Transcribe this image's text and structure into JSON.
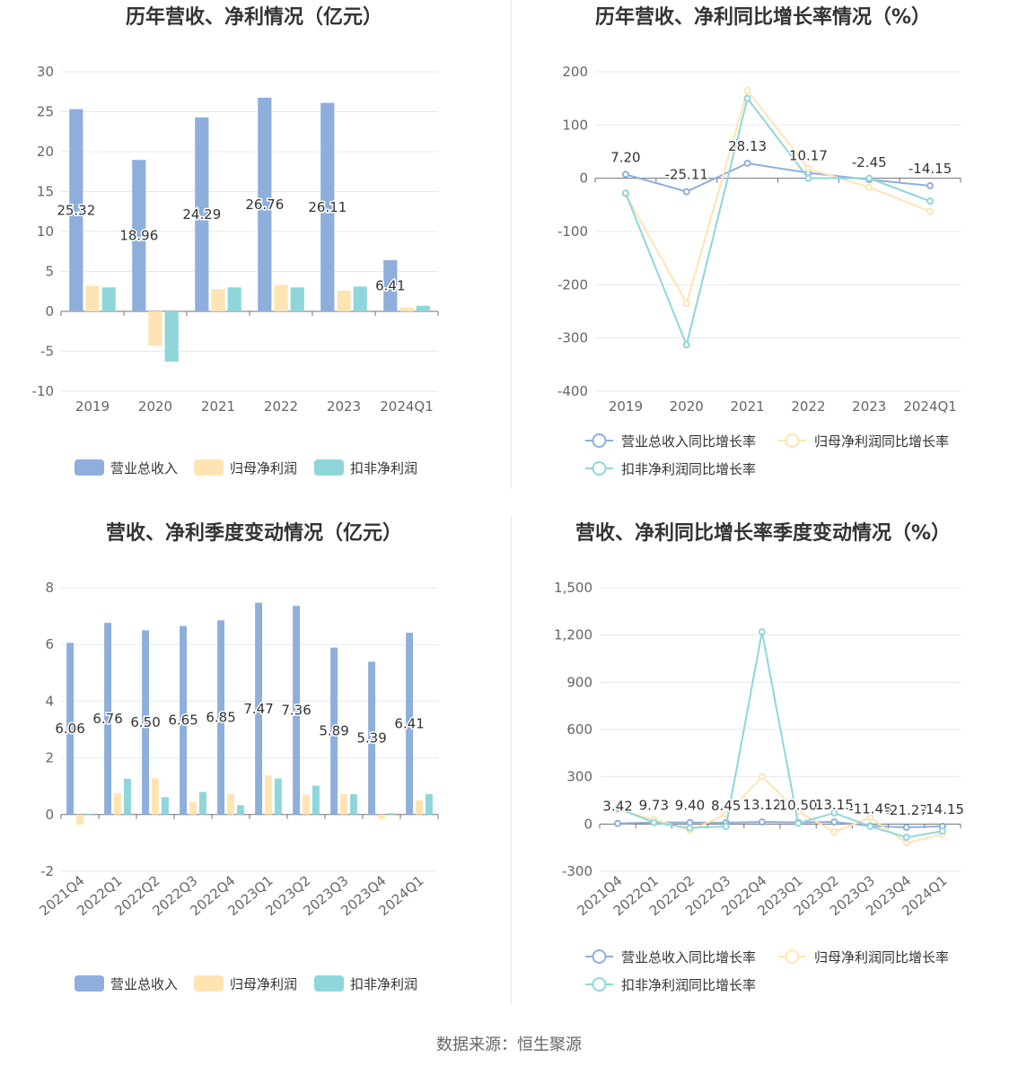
{
  "colors": {
    "revenue": "#8eaedc",
    "parent_profit": "#ffe4b3",
    "deducted_profit": "#8fd6da",
    "grid": "#e6e8ef",
    "axis": "#6e7079"
  },
  "source_text": "数据来源：恒生聚源",
  "chart_data": [
    {
      "type": "bar",
      "title": "历年营收、净利情况（亿元）",
      "categories": [
        "2019",
        "2020",
        "2021",
        "2022",
        "2023",
        "2024Q1"
      ],
      "ylim": [
        -10,
        30
      ],
      "yticks": [
        -10,
        -5,
        0,
        5,
        10,
        15,
        20,
        25,
        30
      ],
      "label_series": 0,
      "series": [
        {
          "name": "营业总收入",
          "color": "#8eaedc",
          "values": [
            25.32,
            18.96,
            24.29,
            26.76,
            26.11,
            6.41
          ],
          "labels": [
            "25.32",
            "18.96",
            "24.29",
            "26.76",
            "26.11",
            "6.41"
          ]
        },
        {
          "name": "归母净利润",
          "color": "#ffe4b3",
          "values": [
            3.2,
            -4.3,
            2.8,
            3.3,
            2.6,
            0.5
          ]
        },
        {
          "name": "扣非净利润",
          "color": "#8fd6da",
          "values": [
            3.0,
            -6.3,
            3.0,
            3.0,
            3.1,
            0.7
          ]
        }
      ],
      "legend": "bottom"
    },
    {
      "type": "line",
      "title": "历年营收、净利同比增长率情况（%）",
      "categories": [
        "2019",
        "2020",
        "2021",
        "2022",
        "2023",
        "2024Q1"
      ],
      "ylim": [
        -400,
        200
      ],
      "yticks": [
        -400,
        -300,
        -200,
        -100,
        0,
        100,
        200
      ],
      "label_series": 0,
      "series": [
        {
          "name": "营业总收入同比增长率",
          "color": "#8eaedc",
          "values": [
            7.2,
            -25.11,
            28.13,
            10.17,
            -2.45,
            -14.15
          ],
          "labels": [
            "7.20",
            "-25.11",
            "28.13",
            "10.17",
            "-2.45",
            "-14.15"
          ]
        },
        {
          "name": "归母净利润同比增长率",
          "color": "#ffe4b3",
          "values": [
            -30,
            -235,
            165,
            18,
            -17,
            -62
          ]
        },
        {
          "name": "扣非净利润同比增长率",
          "color": "#8fd6da",
          "values": [
            -28,
            -313,
            150,
            0,
            0,
            -43
          ]
        }
      ],
      "legend": "bottom"
    },
    {
      "type": "bar",
      "title": "营收、净利季度变动情况（亿元）",
      "categories": [
        "2021Q4",
        "2022Q1",
        "2022Q2",
        "2022Q3",
        "2022Q4",
        "2023Q1",
        "2023Q2",
        "2023Q3",
        "2023Q4",
        "2024Q1"
      ],
      "ylim": [
        -2,
        8
      ],
      "yticks": [
        -2,
        0,
        2,
        4,
        6,
        8
      ],
      "label_series": 0,
      "rotate_x": true,
      "series": [
        {
          "name": "营业总收入",
          "color": "#8eaedc",
          "values": [
            6.06,
            6.76,
            6.5,
            6.65,
            6.85,
            7.47,
            7.36,
            5.89,
            5.39,
            6.41
          ],
          "labels": [
            "6.06",
            "6.76",
            "6.50",
            "6.65",
            "6.85",
            "7.47",
            "7.36",
            "5.89",
            "5.39",
            "6.41"
          ]
        },
        {
          "name": "归母净利润",
          "color": "#ffe4b3",
          "values": [
            -0.35,
            0.75,
            1.28,
            0.45,
            0.73,
            1.38,
            0.7,
            0.72,
            -0.15,
            0.5
          ]
        },
        {
          "name": "扣非净利润",
          "color": "#8fd6da",
          "values": [
            0.03,
            1.26,
            0.62,
            0.8,
            0.33,
            1.27,
            1.02,
            0.72,
            0.05,
            0.72
          ]
        }
      ],
      "legend": "bottom"
    },
    {
      "type": "line",
      "title": "营收、净利同比增长率季度变动情况（%）",
      "categories": [
        "2021Q4",
        "2022Q1",
        "2022Q2",
        "2022Q3",
        "2022Q4",
        "2023Q1",
        "2023Q2",
        "2023Q3",
        "2023Q4",
        "2024Q1"
      ],
      "ylim": [
        -300,
        1500
      ],
      "yticks": [
        -300,
        0,
        300,
        600,
        900,
        1200,
        1500
      ],
      "ytick_labels": [
        "-300",
        "0",
        "300",
        "600",
        "900",
        "1,200",
        "1,500"
      ],
      "label_series": 0,
      "rotate_x": true,
      "series": [
        {
          "name": "营业总收入同比增长率",
          "color": "#8eaedc",
          "values": [
            3.42,
            9.73,
            9.4,
            8.45,
            13.12,
            10.5,
            13.15,
            -11.48,
            -21.27,
            -14.15
          ],
          "labels": [
            "3.42",
            "9.73",
            "9.40",
            "8.45",
            "13.12",
            "10.50",
            "13.15",
            "-11.48",
            "-21.27",
            "-14.15"
          ]
        },
        {
          "name": "归母净利润同比增长率",
          "color": "#ffe4b3",
          "values": [
            90,
            30,
            -40,
            60,
            300,
            80,
            -50,
            40,
            -120,
            -65
          ]
        },
        {
          "name": "扣非净利润同比增长率",
          "color": "#8fd6da",
          "values": [
            100,
            10,
            -25,
            -15,
            1220,
            5,
            70,
            -15,
            -85,
            -45
          ]
        }
      ],
      "legend": "bottom"
    }
  ]
}
